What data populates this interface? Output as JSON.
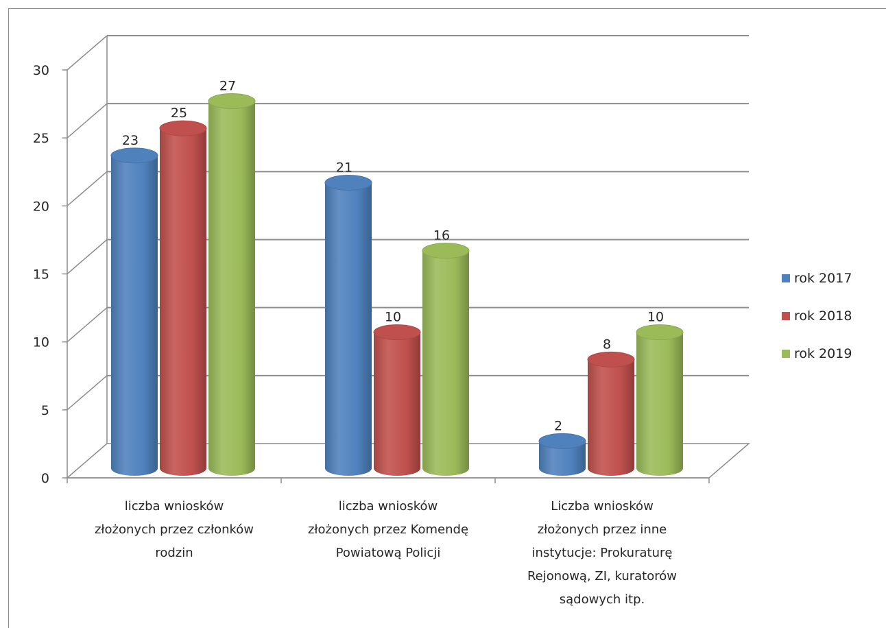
{
  "chart_data": {
    "type": "bar",
    "categories": [
      [
        "liczba wniosków",
        "złożonych przez członków",
        "rodzin"
      ],
      [
        "liczba wniosków",
        "złożonych przez Komendę",
        "Powiatową Policji"
      ],
      [
        "Liczba wniosków",
        "złożonych przez inne",
        "instytucje: Prokuraturę",
        "Rejonową, ZI, kuratorów",
        "sądowych itp."
      ]
    ],
    "series": [
      {
        "name": "rok 2017",
        "values": [
          23,
          21,
          2
        ],
        "color": "#4F81BD"
      },
      {
        "name": "rok 2018",
        "values": [
          25,
          10,
          8
        ],
        "color": "#C0504D"
      },
      {
        "name": "rok 2019",
        "values": [
          27,
          16,
          10
        ],
        "color": "#9BBB59"
      }
    ],
    "ylim": [
      0,
      30
    ],
    "yticks": [
      0,
      5,
      10,
      15,
      20,
      25,
      30
    ],
    "title": "",
    "xlabel": "",
    "ylabel": "",
    "grid": true,
    "legend_position": "right",
    "style": "3d-cylinder"
  }
}
